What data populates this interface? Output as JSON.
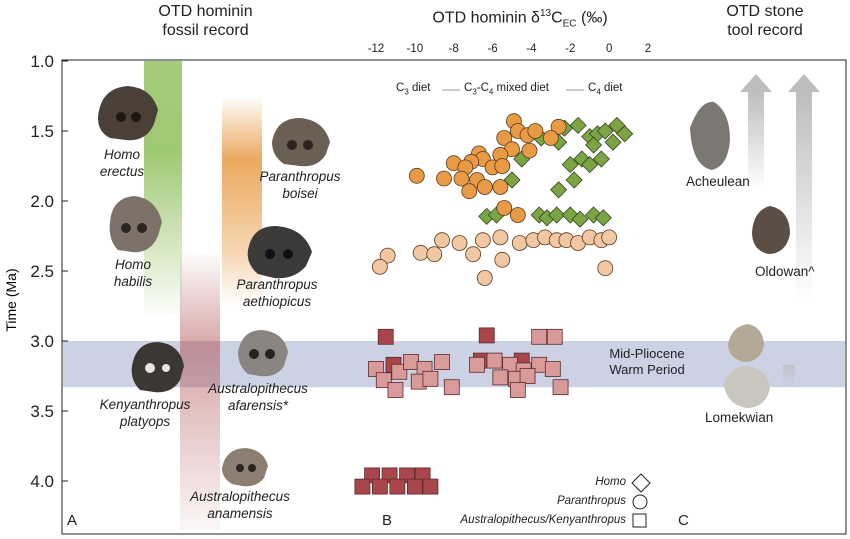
{
  "headers": {
    "fossil_record": [
      "OTD hominin",
      "fossil record"
    ],
    "isotope": {
      "main": "OTD hominin δ",
      "sup": "13",
      "c": "C",
      "sub": "EC",
      "unit": " (‰)"
    },
    "stone_tools": [
      "OTD stone",
      "tool record"
    ]
  },
  "y_axis": {
    "label": "Time (Ma)",
    "ticks": [
      "1.0",
      "1.5",
      "2.0",
      "2.5",
      "3.0",
      "3.5",
      "4.0"
    ]
  },
  "panel_letters": [
    "A",
    "B",
    "C"
  ],
  "warm_period": {
    "label": [
      "Mid-Pliocene",
      "Warm Period"
    ],
    "range_ma": [
      3.0,
      3.33
    ],
    "color": "#c9cfe3"
  },
  "diet_scale": {
    "c3": "C",
    "c3_sub": "3",
    "c3_tail": " diet",
    "mixed": "C",
    "mixed_sub1": "3",
    "mixed_mid": "-C",
    "mixed_sub2": "4",
    "mixed_tail": " mixed diet",
    "c4": "C",
    "c4_sub": "4",
    "c4_tail": " diet"
  },
  "taxa": [
    {
      "name": [
        "Homo",
        "erectus"
      ],
      "bar": "green"
    },
    {
      "name": [
        "Homo",
        "habilis"
      ],
      "bar": "green"
    },
    {
      "name": [
        "Paranthropus",
        "boisei"
      ],
      "bar": "orange"
    },
    {
      "name": [
        "Paranthropus",
        "aethiopicus"
      ],
      "bar": "orange"
    },
    {
      "name": [
        "Kenyanthropus",
        "platyops"
      ],
      "bar": "none"
    },
    {
      "name": [
        "Australopithecus",
        "afarensis*"
      ],
      "bar": "red"
    },
    {
      "name": [
        "Australopithecus",
        "anamensis"
      ],
      "bar": "red"
    }
  ],
  "taxon_bars": [
    {
      "taxon": "Homo",
      "color": "#8fbf5a",
      "start_ma": 1.0,
      "end_ma": 2.85
    },
    {
      "taxon": "Paranthropus",
      "color": "#e89a45",
      "start_ma": 1.25,
      "end_ma": 2.75
    },
    {
      "taxon": "Australopithecus",
      "color": "#b45a5a",
      "start_ma": 2.35,
      "end_ma": 4.35
    }
  ],
  "tools": [
    {
      "name": "Acheulean",
      "arrow": true
    },
    {
      "name": "Oldowan^",
      "arrow": true
    },
    {
      "name": "Lomekwian",
      "arrow": false
    }
  ],
  "legend": [
    {
      "name": "Homo",
      "marker": "diamond"
    },
    {
      "name": "Paranthropus",
      "marker": "circle"
    },
    {
      "name": "Australopithecus/Kenyanthropus",
      "marker": "square"
    }
  ],
  "colors": {
    "homo": "#7ba445",
    "paranthropus_dark": "#e89a45",
    "paranthropus_light": "#f2c7a3",
    "australo_dark": "#a8464b",
    "australo_light": "#d99a9a"
  },
  "chart_data": {
    "type": "scatter",
    "xlabel": "",
    "ylabel": "Time (Ma)",
    "xlim": [
      -13,
      2
    ],
    "ylim": [
      1.0,
      4.35
    ],
    "xticks": [
      -12,
      -10,
      -8,
      -6,
      -4,
      -2,
      0,
      2
    ],
    "yticks": [
      1.0,
      1.5,
      2.0,
      2.5,
      3.0,
      3.5,
      4.0
    ],
    "series": [
      {
        "name": "Homo",
        "marker": "diamond",
        "color": "#7ba445",
        "points": [
          [
            -2.3,
            1.48
          ],
          [
            -1.6,
            1.46
          ],
          [
            -1.0,
            1.54
          ],
          [
            -0.6,
            1.52
          ],
          [
            -0.2,
            1.5
          ],
          [
            0.4,
            1.46
          ],
          [
            0.8,
            1.52
          ],
          [
            -3.5,
            1.55
          ],
          [
            -2.6,
            1.58
          ],
          [
            -0.8,
            1.6
          ],
          [
            0.2,
            1.58
          ],
          [
            -4.5,
            1.7
          ],
          [
            -2.0,
            1.74
          ],
          [
            -1.4,
            1.7
          ],
          [
            -1.0,
            1.74
          ],
          [
            -0.4,
            1.7
          ],
          [
            -5.0,
            1.85
          ],
          [
            -1.8,
            1.85
          ],
          [
            -2.6,
            1.92
          ],
          [
            -6.3,
            2.11
          ],
          [
            -5.8,
            2.1
          ],
          [
            -3.6,
            2.1
          ],
          [
            -3.2,
            2.12
          ],
          [
            -2.7,
            2.1
          ],
          [
            -2.0,
            2.1
          ],
          [
            -1.5,
            2.13
          ],
          [
            -0.8,
            2.1
          ],
          [
            -0.3,
            2.12
          ]
        ]
      },
      {
        "name": "Paranthropus",
        "marker": "circle",
        "color": "#e89a45",
        "points": [
          [
            -4.9,
            1.43
          ],
          [
            -4.7,
            1.5
          ],
          [
            -5.4,
            1.55
          ],
          [
            -4.2,
            1.53
          ],
          [
            -2.6,
            1.47
          ],
          [
            -3.0,
            1.55
          ],
          [
            -3.8,
            1.5
          ],
          [
            -4.1,
            1.64
          ],
          [
            -5.0,
            1.63
          ],
          [
            -5.6,
            1.67
          ],
          [
            -6.7,
            1.66
          ],
          [
            -6.5,
            1.7
          ],
          [
            -7.1,
            1.72
          ],
          [
            -8.0,
            1.73
          ],
          [
            -7.4,
            1.76
          ],
          [
            -6.0,
            1.76
          ],
          [
            -5.5,
            1.75
          ],
          [
            -7.6,
            1.84
          ],
          [
            -8.5,
            1.84
          ],
          [
            -9.9,
            1.82
          ],
          [
            -6.8,
            1.85
          ],
          [
            -6.4,
            1.9
          ],
          [
            -5.6,
            1.9
          ],
          [
            -7.2,
            1.93
          ],
          [
            -5.4,
            2.05
          ],
          [
            -4.7,
            2.1
          ]
        ]
      },
      {
        "name": "Paranthropus (light)",
        "marker": "circle",
        "color": "#f2c7a3",
        "points": [
          [
            -8.6,
            2.28
          ],
          [
            -7.7,
            2.3
          ],
          [
            -6.5,
            2.28
          ],
          [
            -5.6,
            2.26
          ],
          [
            -4.6,
            2.3
          ],
          [
            -3.9,
            2.28
          ],
          [
            -3.3,
            2.26
          ],
          [
            -2.7,
            2.28
          ],
          [
            -2.2,
            2.28
          ],
          [
            -1.6,
            2.3
          ],
          [
            -1.0,
            2.26
          ],
          [
            -0.4,
            2.28
          ],
          [
            0.0,
            2.26
          ],
          [
            -11.4,
            2.39
          ],
          [
            -9.7,
            2.37
          ],
          [
            -9.0,
            2.38
          ],
          [
            -7.0,
            2.38
          ],
          [
            -5.5,
            2.42
          ],
          [
            -11.8,
            2.47
          ],
          [
            -6.4,
            2.55
          ],
          [
            -0.2,
            2.48
          ]
        ]
      },
      {
        "name": "Australopithecus (dark)",
        "marker": "square",
        "color": "#a8464b",
        "points": [
          [
            -11.5,
            2.97
          ],
          [
            -6.3,
            2.96
          ],
          [
            -11.1,
            3.17
          ],
          [
            -6.6,
            3.14
          ],
          [
            -4.5,
            3.14
          ],
          [
            -12.2,
            3.96
          ],
          [
            -11.3,
            3.96
          ],
          [
            -10.4,
            3.96
          ],
          [
            -9.6,
            3.96
          ],
          [
            -12.7,
            4.04
          ],
          [
            -11.8,
            4.04
          ],
          [
            -10.9,
            4.04
          ],
          [
            -10.0,
            4.04
          ],
          [
            -9.2,
            4.04
          ]
        ]
      },
      {
        "name": "Australopithecus (light)",
        "marker": "square",
        "color": "#d99a9a",
        "points": [
          [
            -3.6,
            2.97
          ],
          [
            -2.8,
            2.97
          ],
          [
            -12.0,
            3.2
          ],
          [
            -10.8,
            3.22
          ],
          [
            -10.2,
            3.15
          ],
          [
            -9.5,
            3.2
          ],
          [
            -8.6,
            3.15
          ],
          [
            -6.8,
            3.17
          ],
          [
            -5.9,
            3.14
          ],
          [
            -5.1,
            3.17
          ],
          [
            -4.4,
            3.21
          ],
          [
            -3.6,
            3.17
          ],
          [
            -2.9,
            3.2
          ],
          [
            -11.6,
            3.28
          ],
          [
            -9.8,
            3.29
          ],
          [
            -9.2,
            3.27
          ],
          [
            -5.6,
            3.26
          ],
          [
            -4.8,
            3.27
          ],
          [
            -4.2,
            3.25
          ],
          [
            -11.0,
            3.35
          ],
          [
            -8.1,
            3.33
          ],
          [
            -4.7,
            3.35
          ],
          [
            -2.5,
            3.33
          ]
        ]
      }
    ]
  }
}
